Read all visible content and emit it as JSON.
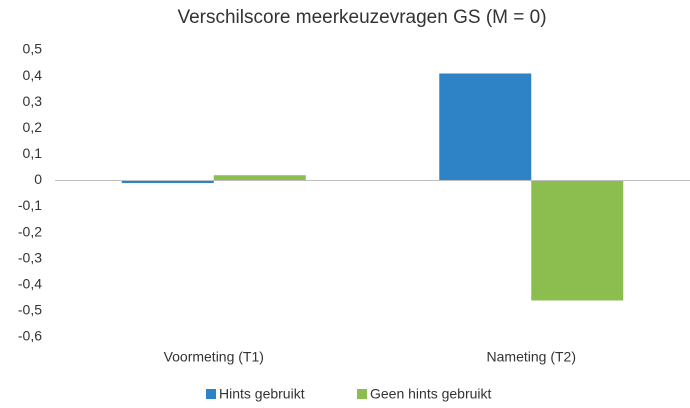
{
  "chart_data": {
    "type": "bar",
    "title": "Verschilscore meerkeuzevragen GS (M = 0)",
    "categories": [
      "Voormeting (T1)",
      "Nameting (T2)"
    ],
    "series": [
      {
        "name": "Hints gebruikt",
        "color": "#2e83c6",
        "values": [
          -0.01,
          0.41
        ]
      },
      {
        "name": "Geen hints gebruikt",
        "color": "#8cbd4f",
        "values": [
          0.02,
          -0.46
        ]
      }
    ],
    "ylim": [
      -0.6,
      0.5
    ],
    "yticks": [
      {
        "value": -0.6,
        "label": "-0,6"
      },
      {
        "value": -0.5,
        "label": "-0,5"
      },
      {
        "value": -0.4,
        "label": "-0,4"
      },
      {
        "value": -0.3,
        "label": "-0,3"
      },
      {
        "value": -0.2,
        "label": "-0,2"
      },
      {
        "value": -0.1,
        "label": "-0,1"
      },
      0,
      {
        "value": 0.1,
        "label": "0,1"
      },
      {
        "value": 0.2,
        "label": "0,2"
      },
      {
        "value": 0.3,
        "label": "0,3"
      },
      {
        "value": 0.4,
        "label": "0,4"
      },
      {
        "value": 0.5,
        "label": "0,5"
      }
    ],
    "grid": false,
    "legend": "bottom"
  }
}
